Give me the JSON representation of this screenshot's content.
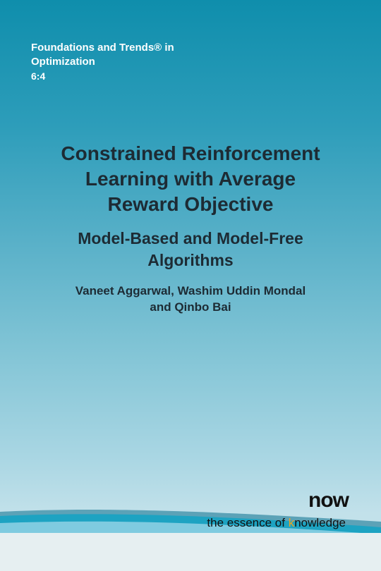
{
  "series": {
    "line1": "Foundations and Trends® in",
    "line2": "Optimization",
    "issue": "6:4"
  },
  "book": {
    "title": "Constrained Reinforcement\nLearning with Average\nReward Objective",
    "subtitle": "Model-Based and Model-Free\nAlgorithms",
    "authors": "Vaneet Aggarwal, Washim Uddin Mondal\nand Qinbo Bai"
  },
  "publisher": {
    "logo": "now",
    "tagline_before": "the essence of ",
    "tagline_accent": "k",
    "tagline_after": "nowledge",
    "accent_color": "#f0a21d"
  },
  "colors": {
    "top": "#0f8eac",
    "bottom": "#c2e1ea",
    "text": "#1d2b34"
  }
}
